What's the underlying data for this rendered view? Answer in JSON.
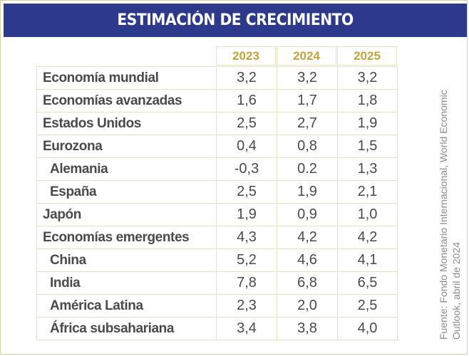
{
  "title": "ESTIMACIÓN DE CRECIMIENTO",
  "source_line1": "Fuente: Fondo Monetario Internacional, World Economic",
  "source_line2": "Outlook, abril de 2024",
  "colors": {
    "banner": "#2d3a8c",
    "year_header": "#c7a23c",
    "text": "#4a4a4a",
    "grid": "#e8e1c2"
  },
  "chart_data": {
    "type": "table",
    "columns": [
      "2023",
      "2024",
      "2025"
    ],
    "rows": [
      {
        "label": "Economía mundial",
        "indent": false,
        "values": [
          "3,2",
          "3,2",
          "3,2"
        ]
      },
      {
        "label": "Economías avanzadas",
        "indent": false,
        "values": [
          "1,6",
          "1,7",
          "1,8"
        ]
      },
      {
        "label": "Estados Unidos",
        "indent": false,
        "values": [
          "2,5",
          "2,7",
          "1,9"
        ]
      },
      {
        "label": "Eurozona",
        "indent": false,
        "values": [
          "0,4",
          "0,8",
          "1,5"
        ]
      },
      {
        "label": "Alemania",
        "indent": true,
        "values": [
          "-0,3",
          "0.2",
          "1,3"
        ]
      },
      {
        "label": "España",
        "indent": true,
        "values": [
          "2,5",
          "1,9",
          "2,1"
        ]
      },
      {
        "label": "Japón",
        "indent": false,
        "values": [
          "1,9",
          "0,9",
          "1,0"
        ]
      },
      {
        "label": "Economías emergentes",
        "indent": false,
        "values": [
          "4,3",
          "4,2",
          "4,2"
        ]
      },
      {
        "label": "China",
        "indent": true,
        "values": [
          "5,2",
          "4,6",
          "4,1"
        ]
      },
      {
        "label": "India",
        "indent": true,
        "values": [
          "7,8",
          "6,8",
          "6,5"
        ]
      },
      {
        "label": "América Latina",
        "indent": true,
        "values": [
          "2,3",
          "2,0",
          "2,5"
        ]
      },
      {
        "label": "África subsahariana",
        "indent": true,
        "values": [
          "3,4",
          "3,8",
          "4,0"
        ]
      }
    ]
  }
}
